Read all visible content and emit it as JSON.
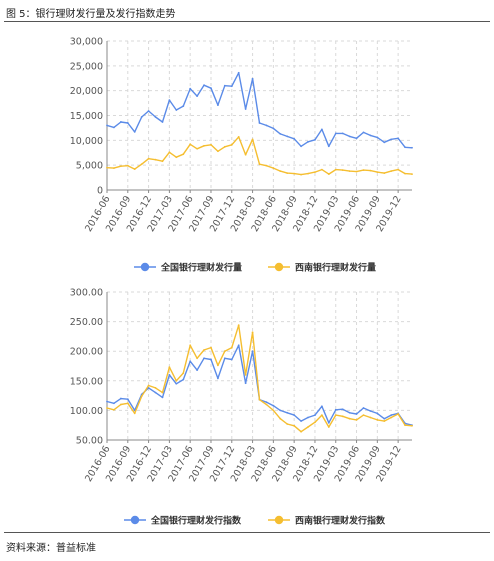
{
  "figure": {
    "title": "图 5：银行理财发行量及发行指数走势",
    "source": "资料来源：普益标准"
  },
  "colors": {
    "blue": "#5B8BE8",
    "yellow": "#F5BE30",
    "grid": "#d9d9d9",
    "axis": "#888888"
  },
  "chart_data": [
    {
      "type": "line",
      "title": "",
      "xlabel": "",
      "ylabel": "",
      "ylim": [
        0,
        30000
      ],
      "y_ticks": [
        "0",
        "5,000",
        "10,000",
        "15,000",
        "20,000",
        "25,000",
        "30,000"
      ],
      "x_tick_labels": [
        "2016-06",
        "2016-09",
        "2016-12",
        "2017-03",
        "2017-06",
        "2017-09",
        "2017-12",
        "2018-03",
        "2018-06",
        "2018-09",
        "2018-12",
        "2019-03",
        "2019-06",
        "2019-09",
        "2019-12"
      ],
      "categories": [
        "2016-06",
        "2016-07",
        "2016-08",
        "2016-09",
        "2016-10",
        "2016-11",
        "2016-12",
        "2017-01",
        "2017-02",
        "2017-03",
        "2017-04",
        "2017-05",
        "2017-06",
        "2017-07",
        "2017-08",
        "2017-09",
        "2017-10",
        "2017-11",
        "2017-12",
        "2018-01",
        "2018-02",
        "2018-03",
        "2018-04",
        "2018-05",
        "2018-06",
        "2018-07",
        "2018-08",
        "2018-09",
        "2018-10",
        "2018-11",
        "2018-12",
        "2019-01",
        "2019-02",
        "2019-03",
        "2019-04",
        "2019-05",
        "2019-06",
        "2019-07",
        "2019-08",
        "2019-09",
        "2019-10",
        "2019-11",
        "2019-12",
        "2020-01",
        "2020-02"
      ],
      "grid": true,
      "legend_position": "bottom",
      "series": [
        {
          "name": "全国银行理财发行量",
          "color": "#5B8BE8",
          "values": [
            13000,
            12600,
            13700,
            13500,
            11700,
            14700,
            15900,
            14700,
            13700,
            18100,
            16100,
            16900,
            20400,
            18900,
            21100,
            20500,
            17100,
            21000,
            20900,
            23600,
            16300,
            22400,
            13500,
            13000,
            12400,
            11300,
            10800,
            10300,
            8800,
            9700,
            10100,
            12200,
            8800,
            11400,
            11400,
            10800,
            10400,
            11600,
            11000,
            10600,
            9600,
            10200,
            10400,
            8600,
            8500
          ]
        },
        {
          "name": "西南银行理财发行量",
          "color": "#F5BE30",
          "values": [
            4500,
            4400,
            4800,
            4900,
            4200,
            5200,
            6300,
            6100,
            5800,
            7600,
            6600,
            7200,
            9200,
            8300,
            8900,
            9100,
            7800,
            8700,
            9100,
            10700,
            7100,
            10200,
            5200,
            4900,
            4400,
            3800,
            3400,
            3300,
            3100,
            3300,
            3600,
            4100,
            3200,
            4100,
            4000,
            3800,
            3700,
            4000,
            3900,
            3600,
            3400,
            3800,
            4100,
            3300,
            3200
          ]
        }
      ]
    },
    {
      "type": "line",
      "title": "",
      "xlabel": "",
      "ylabel": "",
      "ylim": [
        50,
        300
      ],
      "y_ticks": [
        "50.00",
        "100.00",
        "150.00",
        "200.00",
        "250.00",
        "300.00"
      ],
      "x_tick_labels": [
        "2016-06",
        "2016-09",
        "2016-12",
        "2017-03",
        "2017-06",
        "2017-09",
        "2017-12",
        "2018-03",
        "2018-06",
        "2018-09",
        "2018-12",
        "2019-03",
        "2019-06",
        "2019-09",
        "2019-12"
      ],
      "categories": [
        "2016-06",
        "2016-07",
        "2016-08",
        "2016-09",
        "2016-10",
        "2016-11",
        "2016-12",
        "2017-01",
        "2017-02",
        "2017-03",
        "2017-04",
        "2017-05",
        "2017-06",
        "2017-07",
        "2017-08",
        "2017-09",
        "2017-10",
        "2017-11",
        "2017-12",
        "2018-01",
        "2018-02",
        "2018-03",
        "2018-04",
        "2018-05",
        "2018-06",
        "2018-07",
        "2018-08",
        "2018-09",
        "2018-10",
        "2018-11",
        "2018-12",
        "2019-01",
        "2019-02",
        "2019-03",
        "2019-04",
        "2019-05",
        "2019-06",
        "2019-07",
        "2019-08",
        "2019-09",
        "2019-10",
        "2019-11",
        "2019-12",
        "2020-01",
        "2020-02"
      ],
      "grid": true,
      "legend_position": "bottom",
      "series": [
        {
          "name": "全国银行理财发行指数",
          "color": "#5B8BE8",
          "values": [
            115,
            112,
            120,
            119,
            100,
            127,
            138,
            130,
            122,
            160,
            145,
            152,
            183,
            168,
            188,
            186,
            154,
            188,
            186,
            210,
            146,
            200,
            118,
            114,
            108,
            100,
            96,
            92,
            82,
            88,
            92,
            107,
            79,
            101,
            102,
            96,
            94,
            104,
            99,
            95,
            86,
            92,
            95,
            78,
            75
          ]
        },
        {
          "name": "西南银行理财发行指数",
          "color": "#F5BE30",
          "values": [
            104,
            101,
            110,
            112,
            95,
            124,
            142,
            138,
            130,
            173,
            150,
            163,
            210,
            188,
            202,
            206,
            176,
            200,
            206,
            244,
            160,
            232,
            118,
            110,
            100,
            86,
            77,
            74,
            64,
            72,
            80,
            92,
            72,
            92,
            90,
            86,
            84,
            92,
            88,
            84,
            82,
            88,
            94,
            75,
            74
          ]
        }
      ]
    }
  ]
}
